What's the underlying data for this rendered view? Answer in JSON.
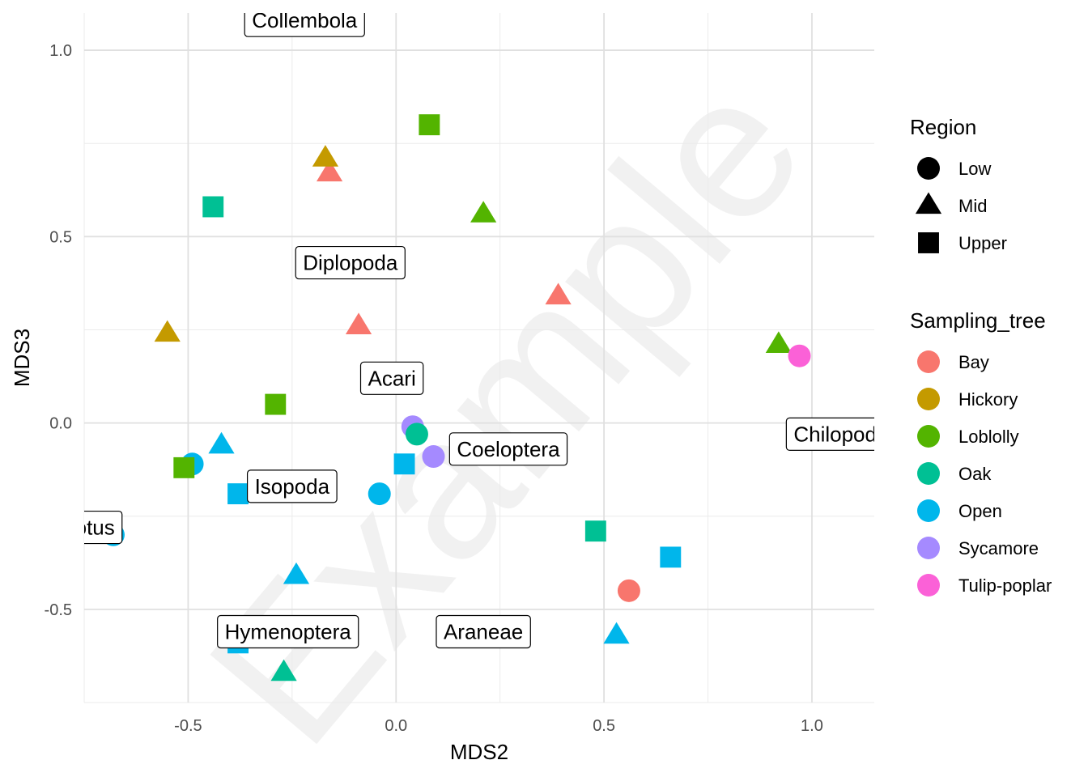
{
  "chart_data": {
    "type": "scatter",
    "title": "",
    "xlabel": "MDS2",
    "ylabel": "MDS3",
    "xlim": [
      -0.75,
      1.15
    ],
    "ylim": [
      -0.75,
      1.1
    ],
    "x_ticks": [
      -0.5,
      0.0,
      0.5,
      1.0
    ],
    "x_tick_labels": [
      "-0.5",
      "0.0",
      "0.5",
      "1.0"
    ],
    "y_ticks": [
      -0.5,
      0.0,
      0.5,
      1.0
    ],
    "y_tick_labels": [
      "-0.5",
      "0.0",
      "0.5",
      "1.0"
    ],
    "grid": true,
    "legend_position": "right",
    "watermark": "Example",
    "legends": {
      "shape": {
        "title": "Region",
        "entries": [
          {
            "label": "Low",
            "shape": "circle"
          },
          {
            "label": "Mid",
            "shape": "triangle"
          },
          {
            "label": "Upper",
            "shape": "square"
          }
        ]
      },
      "color": {
        "title": "Sampling_tree",
        "entries": [
          {
            "label": "Bay",
            "color": "#F8766D"
          },
          {
            "label": "Hickory",
            "color": "#C49A00"
          },
          {
            "label": "Loblolly",
            "color": "#53B400"
          },
          {
            "label": "Oak",
            "color": "#00C094"
          },
          {
            "label": "Open",
            "color": "#00B6EB"
          },
          {
            "label": "Sycamore",
            "color": "#A58AFF"
          },
          {
            "label": "Tulip-poplar",
            "color": "#FB61D7"
          }
        ]
      }
    },
    "points": [
      {
        "x": 0.08,
        "y": 0.8,
        "tree": "Loblolly",
        "region": "Upper"
      },
      {
        "x": -0.16,
        "y": 0.67,
        "tree": "Bay",
        "region": "Mid"
      },
      {
        "x": -0.17,
        "y": 0.71,
        "tree": "Hickory",
        "region": "Mid"
      },
      {
        "x": -0.44,
        "y": 0.58,
        "tree": "Oak",
        "region": "Upper"
      },
      {
        "x": 0.21,
        "y": 0.56,
        "tree": "Loblolly",
        "region": "Mid"
      },
      {
        "x": 0.39,
        "y": 0.34,
        "tree": "Bay",
        "region": "Mid"
      },
      {
        "x": -0.09,
        "y": 0.26,
        "tree": "Bay",
        "region": "Mid"
      },
      {
        "x": -0.55,
        "y": 0.24,
        "tree": "Hickory",
        "region": "Mid"
      },
      {
        "x": 0.92,
        "y": 0.21,
        "tree": "Loblolly",
        "region": "Mid"
      },
      {
        "x": 0.97,
        "y": 0.18,
        "tree": "Tulip-poplar",
        "region": "Low"
      },
      {
        "x": -0.29,
        "y": 0.05,
        "tree": "Loblolly",
        "region": "Upper"
      },
      {
        "x": 0.04,
        "y": -0.01,
        "tree": "Sycamore",
        "region": "Low"
      },
      {
        "x": 0.05,
        "y": -0.03,
        "tree": "Oak",
        "region": "Low"
      },
      {
        "x": 0.09,
        "y": -0.09,
        "tree": "Sycamore",
        "region": "Low"
      },
      {
        "x": -0.42,
        "y": -0.06,
        "tree": "Open",
        "region": "Mid"
      },
      {
        "x": -0.49,
        "y": -0.11,
        "tree": "Open",
        "region": "Low"
      },
      {
        "x": -0.51,
        "y": -0.12,
        "tree": "Loblolly",
        "region": "Upper"
      },
      {
        "x": 0.02,
        "y": -0.11,
        "tree": "Open",
        "region": "Upper"
      },
      {
        "x": -0.04,
        "y": -0.19,
        "tree": "Open",
        "region": "Low"
      },
      {
        "x": -0.38,
        "y": -0.19,
        "tree": "Open",
        "region": "Upper"
      },
      {
        "x": -0.68,
        "y": -0.3,
        "tree": "Open",
        "region": "Low"
      },
      {
        "x": 0.48,
        "y": -0.29,
        "tree": "Oak",
        "region": "Upper"
      },
      {
        "x": 0.66,
        "y": -0.36,
        "tree": "Open",
        "region": "Upper"
      },
      {
        "x": -0.24,
        "y": -0.41,
        "tree": "Open",
        "region": "Mid"
      },
      {
        "x": 0.56,
        "y": -0.45,
        "tree": "Bay",
        "region": "Low"
      },
      {
        "x": 0.53,
        "y": -0.57,
        "tree": "Open",
        "region": "Mid"
      },
      {
        "x": -0.38,
        "y": -0.59,
        "tree": "Open",
        "region": "Upper"
      },
      {
        "x": -0.27,
        "y": -0.67,
        "tree": "Oak",
        "region": "Mid"
      }
    ],
    "labels": [
      {
        "text": "Collembola",
        "x": -0.22,
        "y": 1.08
      },
      {
        "text": "Diplopoda",
        "x": -0.11,
        "y": 0.43
      },
      {
        "text": "Acari",
        "x": -0.01,
        "y": 0.12
      },
      {
        "text": "Coeloptera",
        "x": 0.27,
        "y": -0.07
      },
      {
        "text": "Chilopoda",
        "x": 1.07,
        "y": -0.03
      },
      {
        "text": "Isopoda",
        "x": -0.25,
        "y": -0.17
      },
      {
        "text": "Camponotus",
        "x": -0.82,
        "y": -0.28
      },
      {
        "text": "Hymenoptera",
        "x": -0.26,
        "y": -0.56
      },
      {
        "text": "Araneae",
        "x": 0.21,
        "y": -0.56
      }
    ]
  }
}
